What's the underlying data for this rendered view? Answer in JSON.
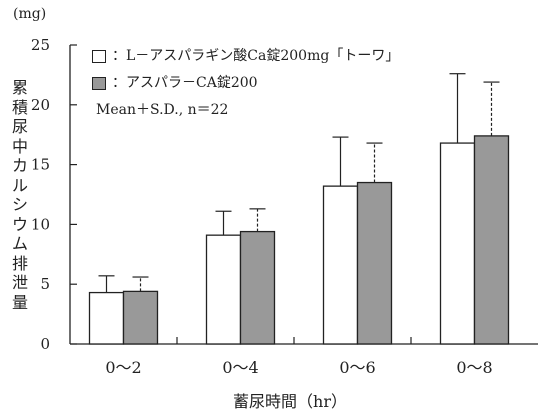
{
  "chart_data": {
    "type": "bar",
    "unit_label": "(mg)",
    "ylabel": "累積尿中カルシウム排泄量",
    "xlabel": "蓄尿時間（hr）",
    "categories": [
      "0～2",
      "0～4",
      "0～6",
      "0～8"
    ],
    "ylim": [
      0,
      25
    ],
    "yticks": [
      "0",
      "5",
      "10",
      "15",
      "20",
      "25"
    ],
    "series": [
      {
        "name": "：L－アスパラギン酸Ca錠200mg「トーワ」",
        "color": "#ffffff",
        "values": [
          4.3,
          9.1,
          13.2,
          16.8
        ],
        "errors": [
          1.4,
          2.0,
          4.1,
          5.8
        ],
        "error_style": "solid"
      },
      {
        "name": "：アスパラ－CA錠200",
        "color": "#999999",
        "values": [
          4.4,
          9.4,
          13.5,
          17.4
        ],
        "errors": [
          1.2,
          1.9,
          3.3,
          4.5
        ],
        "error_style": "dashed"
      }
    ],
    "note": "Mean＋S.D., n＝22",
    "grid": false,
    "legend_position": "top-left"
  }
}
